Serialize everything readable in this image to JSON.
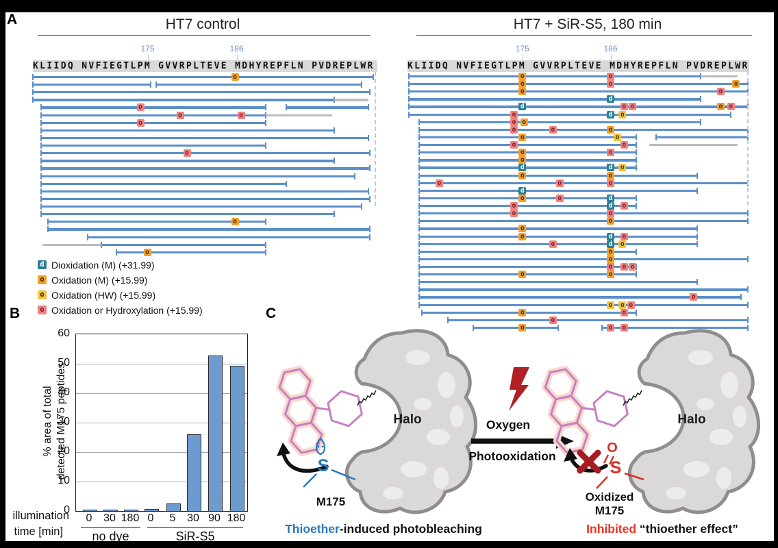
{
  "panel_a": {
    "label": "A",
    "sequence": "KLIIDQ NVFIEGTLPM GVVRPLTEVE MDHYREPFLN PVDREPLWR",
    "position_labels": [
      {
        "text": "175",
        "frac": 33.5
      },
      {
        "text": "186",
        "frac": 59.5
      }
    ],
    "bar_color": "#5b8fc9",
    "gap_color": "#bbbbbb",
    "marker_colors": {
      "di": "#2d7f93",
      "oxm": "#efa02f",
      "oxhw": "#f2c43d",
      "oxh": "#ee8181"
    },
    "marker_text_colors": {
      "di": "#ffffff",
      "oxm": "#3c2a00",
      "oxhw": "#3c2a00",
      "oxh": "#7d1616"
    },
    "maps": [
      {
        "id": "left",
        "title": "HT7 control",
        "rows": [
          {
            "b": [
              [
                0,
                99.4
              ]
            ],
            "m": [
              [
                59,
                "oxm"
              ]
            ]
          },
          {
            "b": [
              [
                0,
                34.4
              ],
              [
                36,
                96
              ]
            ]
          },
          {
            "b": [
              [
                0,
                98.4
              ]
            ]
          },
          {
            "b": [
              [
                0,
                88
              ]
            ],
            "g": [
              [
                88,
                98
              ]
            ]
          },
          {
            "b": [
              [
                2.4,
                68
              ],
              [
                74,
                98
              ]
            ],
            "m": [
              [
                31.4,
                "oxh"
              ]
            ]
          },
          {
            "b": [
              [
                2.4,
                68
              ]
            ],
            "g": [
              [
                68,
                87.4
              ]
            ],
            "m": [
              [
                43,
                "oxh"
              ],
              [
                60.8,
                "oxh"
              ]
            ]
          },
          {
            "b": [
              [
                2.4,
                68
              ]
            ],
            "m": [
              [
                31.4,
                "oxh"
              ]
            ]
          },
          {
            "b": [
              [
                2.4,
                88
              ]
            ]
          },
          {
            "b": [
              [
                2.4,
                98
              ]
            ]
          },
          {
            "b": [
              [
                2.4,
                68
              ]
            ]
          },
          {
            "b": [
              [
                2.4,
                98.4
              ]
            ],
            "m": [
              [
                45,
                "oxh"
              ]
            ]
          },
          {
            "b": [
              [
                2.4,
                88
              ]
            ]
          },
          {
            "b": [
              [
                2.4,
                98.4
              ]
            ]
          },
          {
            "b": [
              [
                2.4,
                94
              ]
            ]
          },
          {
            "b": [
              [
                2.4,
                74
              ]
            ]
          },
          {
            "b": [
              [
                2.4,
                98
              ]
            ]
          },
          {
            "b": [
              [
                2.4,
                98.4
              ]
            ]
          },
          {
            "b": [
              [
                2.4,
                96
              ]
            ]
          },
          {
            "b": [
              [
                2.4,
                88
              ]
            ]
          },
          {
            "b": [
              [
                4.4,
                68
              ]
            ],
            "m": [
              [
                59,
                "oxm"
              ]
            ]
          },
          {
            "b": [
              [
                4.4,
                98.4
              ]
            ]
          },
          {
            "b": [
              [
                16,
                98.4
              ]
            ]
          },
          {
            "b": [
              [
                20,
                68
              ]
            ],
            "g": [
              [
                2.8,
                20
              ]
            ]
          },
          {
            "b": [
              [
                24.4,
                68
              ]
            ],
            "m": [
              [
                33.4,
                "oxm"
              ]
            ]
          }
        ]
      },
      {
        "id": "right",
        "title": "HT7 + SiR-S5, 180 min",
        "rows": [
          {
            "b": [
              [
                0,
                86
              ]
            ],
            "g": [
              [
                86,
                97
              ]
            ],
            "m": [
              [
                33.5,
                "oxm"
              ],
              [
                59.5,
                "oxh"
              ]
            ]
          },
          {
            "b": [
              [
                0,
                100
              ]
            ],
            "m": [
              [
                33.5,
                "oxm"
              ],
              [
                59.5,
                "oxh"
              ],
              [
                96.5,
                "oxm"
              ]
            ]
          },
          {
            "b": [
              [
                0,
                100
              ]
            ],
            "m": [
              [
                33.5,
                "oxm"
              ],
              [
                92,
                "oxh"
              ]
            ]
          },
          {
            "b": [
              [
                0,
                86
              ]
            ],
            "m": [
              [
                59.5,
                "di"
              ]
            ]
          },
          {
            "b": [
              [
                0,
                100
              ]
            ],
            "m": [
              [
                33.5,
                "di"
              ],
              [
                63.5,
                "oxh"
              ],
              [
                66,
                "oxh"
              ],
              [
                92,
                "oxm"
              ],
              [
                95,
                "oxh"
              ]
            ]
          },
          {
            "b": [
              [
                0,
                95
              ]
            ],
            "m": [
              [
                31,
                "oxh"
              ],
              [
                59.5,
                "di"
              ],
              [
                63,
                "oxhw"
              ]
            ]
          },
          {
            "b": [
              [
                3,
                86
              ]
            ],
            "m": [
              [
                31,
                "oxh"
              ],
              [
                34,
                "oxm"
              ]
            ]
          },
          {
            "b": [
              [
                3,
                100
              ]
            ],
            "m": [
              [
                31,
                "oxh"
              ],
              [
                42.5,
                "oxh"
              ],
              [
                59.5,
                "oxm"
              ]
            ]
          },
          {
            "b": [
              [
                3,
                67
              ],
              [
                73,
                100
              ]
            ],
            "m": [
              [
                33.5,
                "oxm"
              ],
              [
                61.5,
                "oxhw"
              ]
            ]
          },
          {
            "b": [
              [
                3,
                67
              ]
            ],
            "g": [
              [
                71,
                97
              ]
            ],
            "m": [
              [
                31,
                "oxh"
              ],
              [
                63.5,
                "oxh"
              ]
            ]
          },
          {
            "b": [
              [
                3,
                67
              ]
            ],
            "m": [
              [
                33.5,
                "oxm"
              ],
              [
                59.5,
                "oxh"
              ]
            ]
          },
          {
            "b": [
              [
                3,
                67
              ]
            ],
            "m": [
              [
                33.5,
                "oxm"
              ]
            ]
          },
          {
            "b": [
              [
                3,
                67
              ]
            ],
            "m": [
              [
                33.5,
                "di"
              ],
              [
                59.5,
                "di"
              ],
              [
                63,
                "oxhw"
              ]
            ]
          },
          {
            "b": [
              [
                3,
                85
              ]
            ],
            "m": [
              [
                33.5,
                "oxm"
              ],
              [
                59.5,
                "oxm"
              ]
            ]
          },
          {
            "b": [
              [
                3,
                100
              ]
            ],
            "m": [
              [
                9,
                "oxh"
              ],
              [
                44.5,
                "oxh"
              ],
              [
                59.5,
                "oxh"
              ]
            ]
          },
          {
            "b": [
              [
                3,
                85
              ]
            ],
            "m": [
              [
                33.5,
                "di"
              ]
            ]
          },
          {
            "b": [
              [
                3,
                67
              ]
            ],
            "m": [
              [
                33.5,
                "oxm"
              ],
              [
                44.5,
                "oxh"
              ],
              [
                59.5,
                "di"
              ]
            ]
          },
          {
            "b": [
              [
                3,
                67
              ]
            ],
            "m": [
              [
                31,
                "oxh"
              ],
              [
                59.5,
                "di"
              ],
              [
                63.5,
                "oxh"
              ]
            ]
          },
          {
            "b": [
              [
                3,
                100
              ]
            ],
            "m": [
              [
                31,
                "oxh"
              ],
              [
                59.5,
                "oxh"
              ]
            ]
          },
          {
            "b": [
              [
                3,
                100
              ]
            ],
            "m": [
              [
                59.5,
                "oxm"
              ]
            ]
          },
          {
            "b": [
              [
                3,
                85
              ]
            ],
            "m": [
              [
                33.5,
                "oxm"
              ]
            ]
          },
          {
            "b": [
              [
                3,
                85
              ]
            ],
            "m": [
              [
                33.5,
                "oxm"
              ],
              [
                59.5,
                "di"
              ],
              [
                63.5,
                "oxh"
              ]
            ]
          },
          {
            "b": [
              [
                3,
                85
              ]
            ],
            "m": [
              [
                42.5,
                "oxh"
              ],
              [
                59.5,
                "di"
              ],
              [
                63,
                "oxhw"
              ]
            ]
          },
          {
            "b": [
              [
                3,
                67
              ]
            ],
            "m": [
              [
                59.5,
                "oxm"
              ]
            ]
          },
          {
            "b": [
              [
                3,
                100
              ]
            ],
            "m": [
              [
                59.5,
                "oxm"
              ]
            ]
          },
          {
            "b": [
              [
                3,
                67
              ]
            ],
            "m": [
              [
                59.5,
                "oxh"
              ],
              [
                63.5,
                "oxh"
              ],
              [
                66,
                "oxh"
              ]
            ]
          },
          {
            "b": [
              [
                3,
                67
              ]
            ],
            "m": [
              [
                33.5,
                "oxm"
              ],
              [
                59.5,
                "oxm"
              ]
            ]
          },
          {
            "b": [
              [
                3,
                85
              ]
            ]
          },
          {
            "b": [
              [
                3,
                100
              ]
            ]
          },
          {
            "b": [
              [
                3,
                98
              ]
            ],
            "m": [
              [
                84,
                "oxh"
              ]
            ]
          },
          {
            "b": [
              [
                3,
                100
              ]
            ],
            "m": [
              [
                59.5,
                "oxhw"
              ],
              [
                63,
                "oxhw"
              ],
              [
                65.5,
                "oxh"
              ]
            ]
          },
          {
            "b": [
              [
                3.8,
                67
              ]
            ],
            "m": [
              [
                33.5,
                "oxm"
              ],
              [
                63.5,
                "oxh"
              ]
            ]
          },
          {
            "b": [
              [
                11.5,
                100
              ]
            ],
            "m": [
              [
                42.5,
                "oxh"
              ]
            ]
          },
          {
            "b": [
              [
                19,
                44
              ],
              [
                57,
                100
              ]
            ],
            "m": [
              [
                33.5,
                "oxm"
              ],
              [
                59.5,
                "oxh"
              ],
              [
                63.5,
                "oxh"
              ]
            ]
          }
        ]
      }
    ],
    "legend": [
      {
        "glyph": "d",
        "type": "di",
        "label": "Dioxidation (M) (+31.99)"
      },
      {
        "glyph": "o",
        "type": "oxm",
        "label": "Oxidation (M) (+15.99)"
      },
      {
        "glyph": "o",
        "type": "oxhw",
        "label": "Oxidation (HW) (+15.99)"
      },
      {
        "glyph": "o",
        "type": "oxh",
        "label": "Oxidation or Hydroxylation (+15.99)"
      }
    ]
  },
  "panel_b": {
    "label": "B"
  },
  "chart_data": {
    "type": "bar",
    "ylabel_lines": [
      "% area of total",
      "detected M175 peptides"
    ],
    "xlabel_lines": [
      "illumination",
      "time [min]"
    ],
    "ylim": [
      0,
      60
    ],
    "yticks": [
      0,
      10,
      20,
      30,
      40,
      50,
      60
    ],
    "grid": true,
    "bar_color": "#6d9bd0",
    "groups": [
      {
        "label": "no dye",
        "categories": [
          "0",
          "30",
          "180"
        ],
        "values": [
          0.4,
          0.3,
          0.3
        ]
      },
      {
        "label": "SiR-S5",
        "categories": [
          "0",
          "5",
          "30",
          "90",
          "180"
        ],
        "values": [
          0.6,
          2.5,
          26,
          52.7,
          49.2
        ]
      }
    ]
  },
  "panel_c": {
    "label": "C",
    "halo_left": "Halo",
    "halo_right": "Halo",
    "m175_label": "M175",
    "s_left": "S",
    "oxygen": "Oxygen",
    "photooxidation": "Photooxidation",
    "o_right": "O",
    "s_right": "S",
    "oxidized_line1": "Oxidized",
    "oxidized_line2": "M175",
    "caption_left_accent": "Thioether",
    "caption_left_rest": "-induced photobleaching",
    "caption_right_accent": "Inhibited",
    "caption_right_rest": " “thioether effect”",
    "accent_blue": "#2779bd",
    "accent_red": "#ea3323",
    "dark_red": "#a51d22",
    "dye_pink": "#c77fc3",
    "dye_glow": "#f8d8ca",
    "halo_fill": "#dbd8d8",
    "halo_stroke": "#918d8d"
  }
}
